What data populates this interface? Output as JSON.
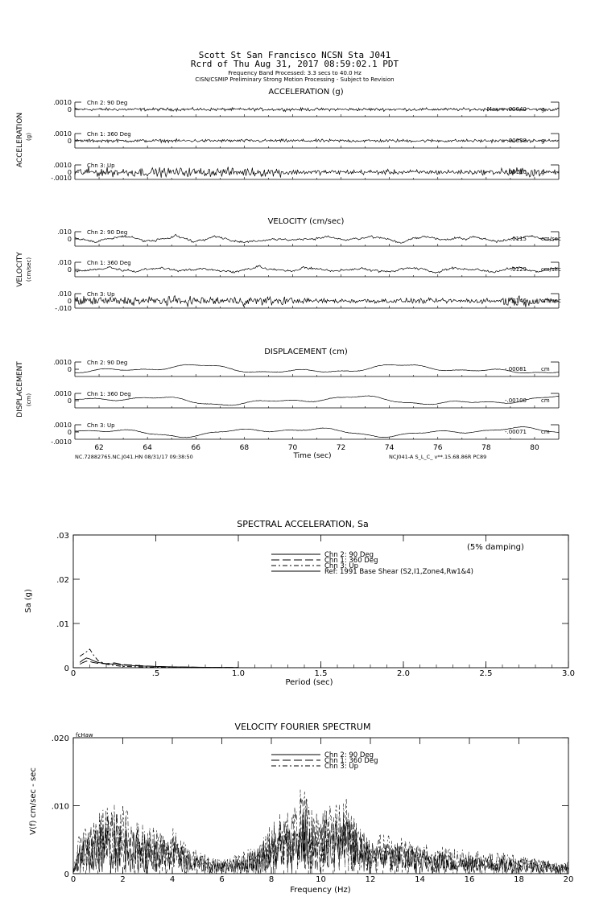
{
  "header": {
    "line1": "Scott St San Francisco    NCSN Sta J041",
    "line2": "Rcrd of Thu Aug 31, 2017 08:59:02.1 PDT",
    "line3": "Frequency Band Processed: 3.3 secs to 40.0 Hz",
    "line4": "CISN/CSMIP Preliminary Strong Motion Processing - Subject to Revision"
  },
  "colors": {
    "ink": "#000000",
    "background": "#ffffff"
  },
  "chart_data": [
    {
      "id": "acceleration",
      "type": "line",
      "title": "ACCELERATION (g)",
      "side_label": "ACCELERATION",
      "unit_label": "(g)",
      "x_range": [
        61,
        81
      ],
      "y_ticks": [
        ".0010",
        "0",
        "-.0010"
      ],
      "bottom_tick": "-.0010",
      "traces": [
        {
          "name": "Chn 2: 90 Deg",
          "max_text": "Max =   .00040",
          "unit": "g",
          "peak": 0.0004,
          "noise": 0.00012,
          "style": "noise"
        },
        {
          "name": "Chn 1: 360 Deg",
          "max_text": ".00038",
          "unit": "g",
          "peak": 0.00038,
          "noise": 0.00011,
          "style": "noise"
        },
        {
          "name": "Chn 3: Up",
          "max_text": "-.00110",
          "unit": "g",
          "peak": 0.0011,
          "noise": 0.0003,
          "style": "noise"
        }
      ]
    },
    {
      "id": "velocity",
      "type": "line",
      "title": "VELOCITY (cm/sec)",
      "side_label": "VELOCITY",
      "unit_label": "(cm/sec)",
      "x_range": [
        61,
        81
      ],
      "y_ticks": [
        ".010",
        "0",
        "-.010"
      ],
      "bottom_tick": "-.010",
      "traces": [
        {
          "name": "Chn 2: 90 Deg",
          "max_text": ".0115",
          "unit": "cm/sec",
          "peak": 0.0115,
          "noise": 0.0035,
          "style": "wavy"
        },
        {
          "name": "Chn 1: 360 Deg",
          "max_text": ".0129",
          "unit": "cm/sec",
          "peak": 0.0129,
          "noise": 0.0038,
          "style": "wavy"
        },
        {
          "name": "Chn 3: Up",
          "max_text": "-.0146",
          "unit": "cm/sec",
          "peak": 0.0146,
          "noise": 0.0045,
          "style": "noise"
        }
      ]
    },
    {
      "id": "displacement",
      "type": "line",
      "title": "DISPLACEMENT (cm)",
      "side_label": "DISPLACEMENT",
      "unit_label": "(cm)",
      "x_range": [
        61,
        81
      ],
      "x_ticks": [
        62,
        64,
        66,
        68,
        70,
        72,
        74,
        76,
        78,
        80
      ],
      "xlabel": "Time (sec)",
      "y_ticks": [
        ".0010",
        "0",
        "-.0010"
      ],
      "bottom_tick": "-.0010",
      "footer_left": "NC.72882765.NC.J041.HN 08/31/17 09:38:50",
      "footer_right": "NCJ041-A  S_L_C_  v**.15.68.86R PC89",
      "traces": [
        {
          "name": "Chn 2: 90 Deg",
          "max_text": "-.00081",
          "unit": "cm",
          "peak": 0.00081,
          "style": "smooth"
        },
        {
          "name": "Chn 1: 360 Deg",
          "max_text": "-.00100",
          "unit": "cm",
          "peak": 0.001,
          "style": "smooth"
        },
        {
          "name": "Chn 3: Up",
          "max_text": "-.00071",
          "unit": "cm",
          "peak": 0.00071,
          "style": "smooth"
        }
      ]
    },
    {
      "id": "spectral-acceleration",
      "type": "line",
      "title": "SPECTRAL ACCELERATION, Sa",
      "xlabel": "Period (sec)",
      "ylabel": "Sa (g)",
      "xlim": [
        0,
        3.0
      ],
      "ylim": [
        0,
        0.03
      ],
      "x_ticks": [
        "0",
        ".5",
        "1.0",
        "1.5",
        "2.0",
        "2.5",
        "3.0"
      ],
      "y_ticks": [
        "0",
        ".01",
        ".02",
        ".03"
      ],
      "annotation": "(5% damping)",
      "legend": [
        "Chn 2: 90 Deg",
        "Chn 1: 360 Deg",
        "Chn 3: Up",
        "Ref: 1991 Base Shear (S2,I1,Zone4,Rw1&4)"
      ],
      "series": [
        {
          "name": "Chn 2: 90 Deg",
          "dash": "",
          "x": [
            0.04,
            0.06,
            0.08,
            0.1,
            0.12,
            0.15,
            0.2,
            0.25,
            0.3,
            0.4,
            0.5,
            0.6,
            0.8,
            1.0
          ],
          "values": [
            0.0012,
            0.0018,
            0.0022,
            0.002,
            0.0016,
            0.0012,
            0.0009,
            0.0008,
            0.0006,
            0.0004,
            0.0003,
            0.0002,
            0.0001,
            5e-05
          ]
        },
        {
          "name": "Chn 1: 360 Deg",
          "dash": "10,4",
          "x": [
            0.04,
            0.06,
            0.08,
            0.1,
            0.12,
            0.15,
            0.2,
            0.25,
            0.3,
            0.4,
            0.5,
            0.6,
            0.8,
            1.0
          ],
          "values": [
            0.0008,
            0.0012,
            0.0015,
            0.0014,
            0.0012,
            0.001,
            0.0009,
            0.0011,
            0.0007,
            0.0005,
            0.0003,
            0.0002,
            0.0001,
            5e-05
          ]
        },
        {
          "name": "Chn 3: Up",
          "dash": "6,3,2,3",
          "x": [
            0.04,
            0.06,
            0.08,
            0.1,
            0.12,
            0.15,
            0.2,
            0.25,
            0.3,
            0.4,
            0.5,
            0.6,
            0.8,
            1.0
          ],
          "values": [
            0.0026,
            0.0031,
            0.0036,
            0.0042,
            0.003,
            0.0016,
            0.0008,
            0.0005,
            0.0003,
            0.0002,
            0.0001,
            0.0001,
            5e-05,
            3e-05
          ]
        }
      ]
    },
    {
      "id": "velocity-fourier-spectrum",
      "type": "line",
      "title": "VELOCITY FOURIER SPECTRUM",
      "corner_label": "fcHaw",
      "xlabel": "Frequency (Hz)",
      "ylabel": "V(f)  cm/sec - sec",
      "xlim": [
        0,
        20
      ],
      "ylim": [
        0,
        0.02
      ],
      "x_ticks": [
        "0",
        "2",
        "4",
        "6",
        "8",
        "10",
        "12",
        "14",
        "16",
        "18",
        "20"
      ],
      "y_ticks": [
        "0",
        ".010",
        ".020"
      ],
      "legend": [
        "Chn 2: 90 Deg",
        "Chn 1: 360 Deg",
        "Chn 3: Up"
      ],
      "envelope": {
        "x": [
          0,
          0.3,
          1,
          1.5,
          2,
          2.5,
          3,
          3.5,
          4,
          4.5,
          5,
          5.5,
          6,
          6.5,
          7,
          7.5,
          8,
          8.5,
          9,
          9.3,
          9.6,
          10,
          10.5,
          11,
          11.5,
          12,
          13,
          14,
          15,
          16,
          17,
          18,
          19,
          20
        ],
        "values": [
          0.001,
          0.006,
          0.008,
          0.009,
          0.009,
          0.007,
          0.006,
          0.006,
          0.006,
          0.004,
          0.003,
          0.0025,
          0.002,
          0.0025,
          0.003,
          0.004,
          0.007,
          0.008,
          0.009,
          0.0125,
          0.009,
          0.0095,
          0.009,
          0.0105,
          0.007,
          0.0055,
          0.005,
          0.004,
          0.0035,
          0.003,
          0.003,
          0.0025,
          0.002,
          0.0015
        ]
      },
      "series": [
        {
          "name": "Chn 2: 90 Deg",
          "dash": ""
        },
        {
          "name": "Chn 1: 360 Deg",
          "dash": "10,4"
        },
        {
          "name": "Chn 3: Up",
          "dash": "6,3,2,3"
        }
      ]
    }
  ]
}
